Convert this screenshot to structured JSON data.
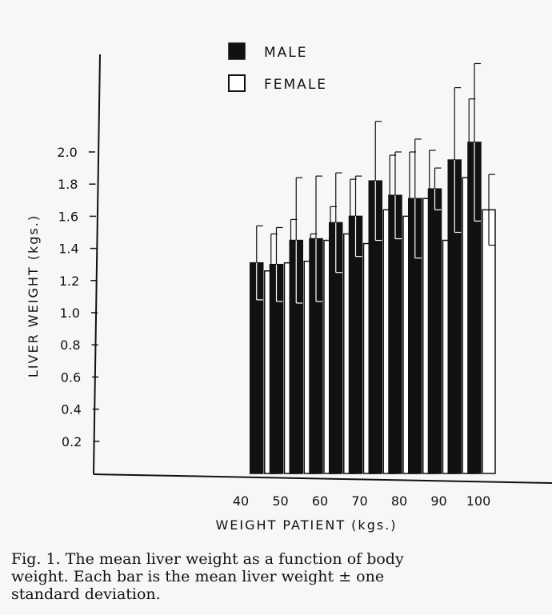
{
  "chart_data": {
    "type": "bar",
    "title": "",
    "xlabel": "WEIGHT PATIENT (kgs.)",
    "ylabel": "LIVER WEIGHT (kgs.)",
    "ylim": [
      0,
      2.2
    ],
    "yticks": [
      "0.2",
      "0.4",
      "0.6",
      "0.8",
      "1.0",
      "1.2",
      "1.4",
      "1.6",
      "1.8",
      "2.0"
    ],
    "xticks": [
      "40",
      "50",
      "60",
      "70",
      "80",
      "90",
      "100"
    ],
    "categories": [
      "45",
      "50",
      "55",
      "60",
      "65",
      "70",
      "75",
      "80",
      "85",
      "90",
      "95",
      "100"
    ],
    "series": [
      {
        "name": "MALE",
        "color": "#111111",
        "values": [
          1.31,
          1.3,
          1.45,
          1.46,
          1.56,
          1.6,
          1.82,
          1.73,
          1.71,
          1.77,
          1.95,
          2.06
        ],
        "errors": [
          0.23,
          0.23,
          0.39,
          0.39,
          0.31,
          0.25,
          0.37,
          0.27,
          0.37,
          0.13,
          0.45,
          0.49
        ]
      },
      {
        "name": "FEMALE",
        "color": "#ffffff",
        "values": [
          1.26,
          1.31,
          1.32,
          1.45,
          1.49,
          1.43,
          1.64,
          1.6,
          1.71,
          1.45,
          1.84,
          1.64
        ],
        "errors": [
          0.23,
          0.27,
          0.17,
          0.21,
          0.34,
          0.28,
          0.34,
          0.4,
          0.3,
          0.41,
          0.49,
          0.22
        ]
      }
    ],
    "legend_position": "top-center",
    "grid": false
  },
  "caption": {
    "lines": [
      "Fig. 1.   The mean liver weight as a function of body",
      "weight.  Each bar is the mean liver weight ± one",
      "standard deviation."
    ]
  }
}
